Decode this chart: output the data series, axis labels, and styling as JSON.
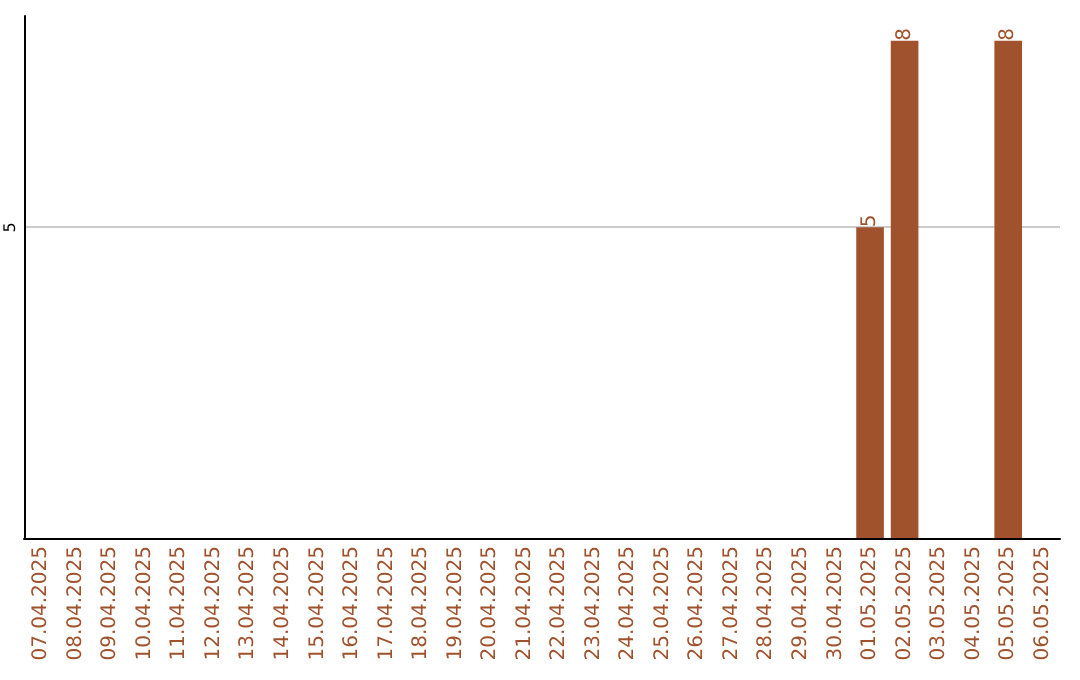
{
  "chart_data": {
    "type": "bar",
    "categories": [
      "07.04.2025",
      "08.04.2025",
      "09.04.2025",
      "10.04.2025",
      "11.04.2025",
      "12.04.2025",
      "13.04.2025",
      "14.04.2025",
      "15.04.2025",
      "16.04.2025",
      "17.04.2025",
      "18.04.2025",
      "19.04.2025",
      "20.04.2025",
      "21.04.2025",
      "22.04.2025",
      "23.04.2025",
      "24.04.2025",
      "25.04.2025",
      "26.04.2025",
      "27.04.2025",
      "28.04.2025",
      "29.04.2025",
      "30.04.2025",
      "01.05.2025",
      "02.05.2025",
      "03.05.2025",
      "04.05.2025",
      "05.05.2025",
      "06.05.2025"
    ],
    "values": [
      null,
      null,
      null,
      null,
      null,
      null,
      null,
      null,
      null,
      null,
      null,
      null,
      null,
      null,
      null,
      null,
      null,
      null,
      null,
      null,
      null,
      null,
      null,
      null,
      5,
      8,
      null,
      null,
      8,
      null
    ],
    "data_labels": true,
    "color": "#a0522d",
    "ylim": [
      0,
      8.4
    ],
    "yticks": [
      {
        "value": 0,
        "label": null
      },
      5
    ],
    "grid": "y"
  }
}
